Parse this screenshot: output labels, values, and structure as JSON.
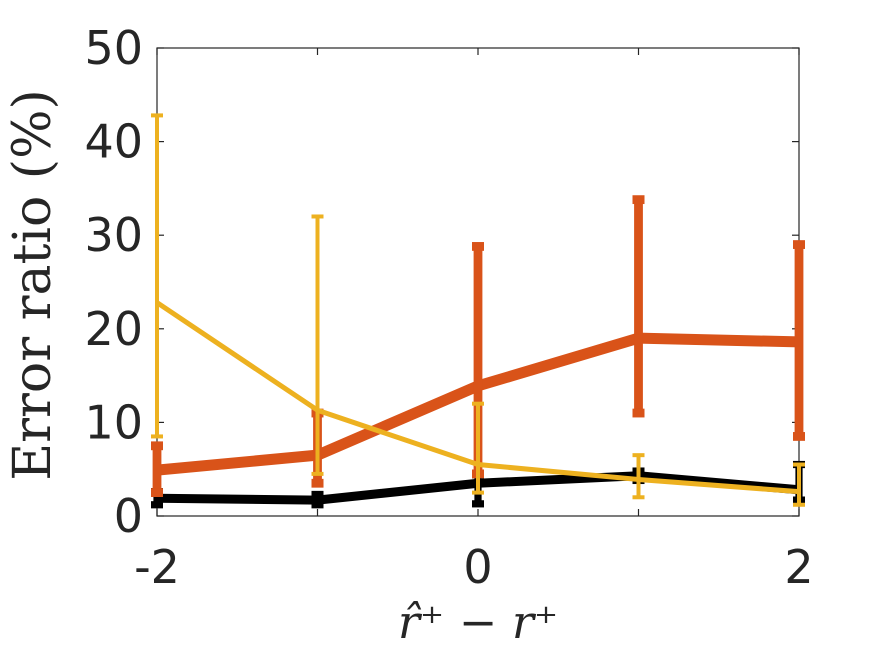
{
  "chart_data": {
    "type": "line",
    "title": "",
    "xlabel": "r̂⁺ − r⁺",
    "ylabel": "Error ratio (%)",
    "xlim": [
      -2,
      2
    ],
    "ylim": [
      0,
      50
    ],
    "xticks": [
      "-2",
      "0",
      "2"
    ],
    "yticks": [
      "0",
      "10",
      "20",
      "30",
      "40",
      "50"
    ],
    "grid": false,
    "legend": "none",
    "series": [
      {
        "color": "#000000",
        "x": [
          -2,
          -1,
          0,
          1,
          2
        ],
        "y": [
          1.9,
          1.7,
          3.5,
          4.3,
          2.8
        ],
        "err_low": [
          1.2,
          1.2,
          1.3,
          3.8,
          1.7
        ],
        "err_high": [
          2.6,
          2.3,
          4.4,
          4.8,
          5.5
        ],
        "line_width": 9
      },
      {
        "color": "#D95319",
        "x": [
          -2,
          -1,
          0,
          1,
          2
        ],
        "y": [
          4.9,
          6.5,
          13.9,
          19.0,
          18.6
        ],
        "err_low": [
          2.5,
          3.5,
          4.5,
          11.0,
          8.5
        ],
        "err_high": [
          7.5,
          11.0,
          28.8,
          33.8,
          29.0
        ],
        "line_width": 11
      },
      {
        "color": "#EDB120",
        "x": [
          -2,
          -1,
          0,
          1,
          2
        ],
        "y": [
          22.8,
          11.3,
          5.5,
          3.9,
          2.6
        ],
        "err_low": [
          8.5,
          4.5,
          2.5,
          2.0,
          1.2
        ],
        "err_high": [
          42.8,
          32.0,
          12.0,
          6.5,
          5.5
        ],
        "line_width": 5
      }
    ]
  }
}
